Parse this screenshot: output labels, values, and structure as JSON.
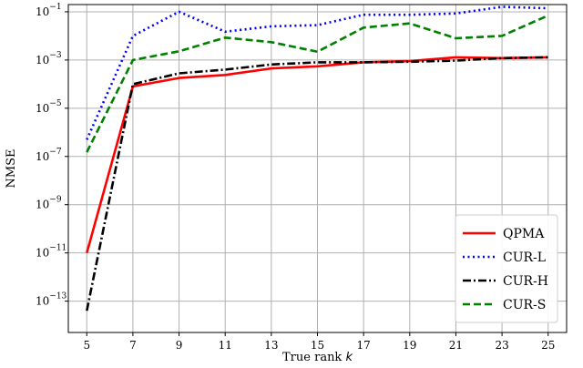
{
  "chart_data": {
    "type": "line",
    "xlabel": "True rank k",
    "ylabel": "NMSE",
    "x": [
      5,
      7,
      9,
      11,
      13,
      15,
      17,
      19,
      21,
      23,
      25
    ],
    "xticks": [
      "5",
      "7",
      "9",
      "11",
      "13",
      "15",
      "17",
      "19",
      "21",
      "23",
      "25"
    ],
    "xlim": [
      4.2,
      25.8
    ],
    "ylim_log10": [
      -14.3,
      -0.7
    ],
    "yscale": "log",
    "yticks": [
      {
        "base": "10",
        "exp": "−1",
        "power": -1
      },
      {
        "base": "10",
        "exp": "−3",
        "power": -3
      },
      {
        "base": "10",
        "exp": "−5",
        "power": -5
      },
      {
        "base": "10",
        "exp": "−7",
        "power": -7
      },
      {
        "base": "10",
        "exp": "−9",
        "power": -9
      },
      {
        "base": "10",
        "exp": "−11",
        "power": -11
      },
      {
        "base": "10",
        "exp": "−13",
        "power": -13
      }
    ],
    "grid": true,
    "legend_position": "lower-right",
    "series": [
      {
        "name": "QPMA",
        "color": "#ff0000",
        "style": "solid",
        "values": [
          1e-11,
          8e-05,
          0.00018,
          0.00024,
          0.00045,
          0.00055,
          0.0008,
          0.0009,
          0.0013,
          0.0012,
          0.0013
        ]
      },
      {
        "name": "CUR-L",
        "color": "#0000ff",
        "style": "dotted",
        "values": [
          5e-07,
          0.01,
          0.1,
          0.015,
          0.025,
          0.028,
          0.075,
          0.075,
          0.085,
          0.16,
          0.14
        ]
      },
      {
        "name": "CUR-H",
        "color": "#000000",
        "style": "dashdot",
        "values": [
          4e-14,
          0.0001,
          0.00028,
          0.0004,
          0.00065,
          0.0008,
          0.0008,
          0.00085,
          0.00095,
          0.0012,
          0.0013
        ]
      },
      {
        "name": "CUR-S",
        "color": "#008000",
        "style": "dashed",
        "values": [
          1.5e-07,
          0.001,
          0.0023,
          0.0085,
          0.0055,
          0.0022,
          0.022,
          0.033,
          0.008,
          0.01,
          0.07
        ]
      }
    ]
  }
}
